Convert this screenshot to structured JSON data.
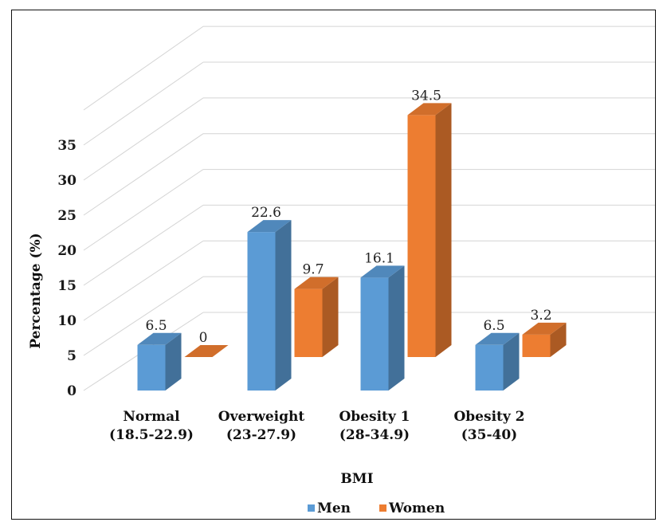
{
  "chart_data": {
    "type": "bar",
    "title": "",
    "xlabel": "BMI",
    "ylabel": "Percentage (%)",
    "ylim": [
      0,
      35
    ],
    "yticks": [
      "0",
      "5",
      "10",
      "15",
      "20",
      "25",
      "30",
      "35"
    ],
    "categories": [
      [
        "Normal",
        "(18.5-22.9)"
      ],
      [
        "Overweight",
        "(23-27.9)"
      ],
      [
        "Obesity 1",
        "(28-34.9)"
      ],
      [
        "Obesity 2",
        "(35-40)"
      ]
    ],
    "series": [
      {
        "name": "Men",
        "values": [
          6.5,
          22.6,
          16.1,
          6.5
        ],
        "labels": [
          "6.5",
          "22.6",
          "16.1",
          "6.5"
        ],
        "color": "#5b9bd5"
      },
      {
        "name": "Women",
        "values": [
          0,
          9.7,
          34.5,
          3.2
        ],
        "labels": [
          "0",
          "9.7",
          "34.5",
          "3.2"
        ],
        "color": "#ed7d31"
      }
    ],
    "grid": true,
    "legend": "bottom",
    "style": "3d-clustered-column"
  }
}
